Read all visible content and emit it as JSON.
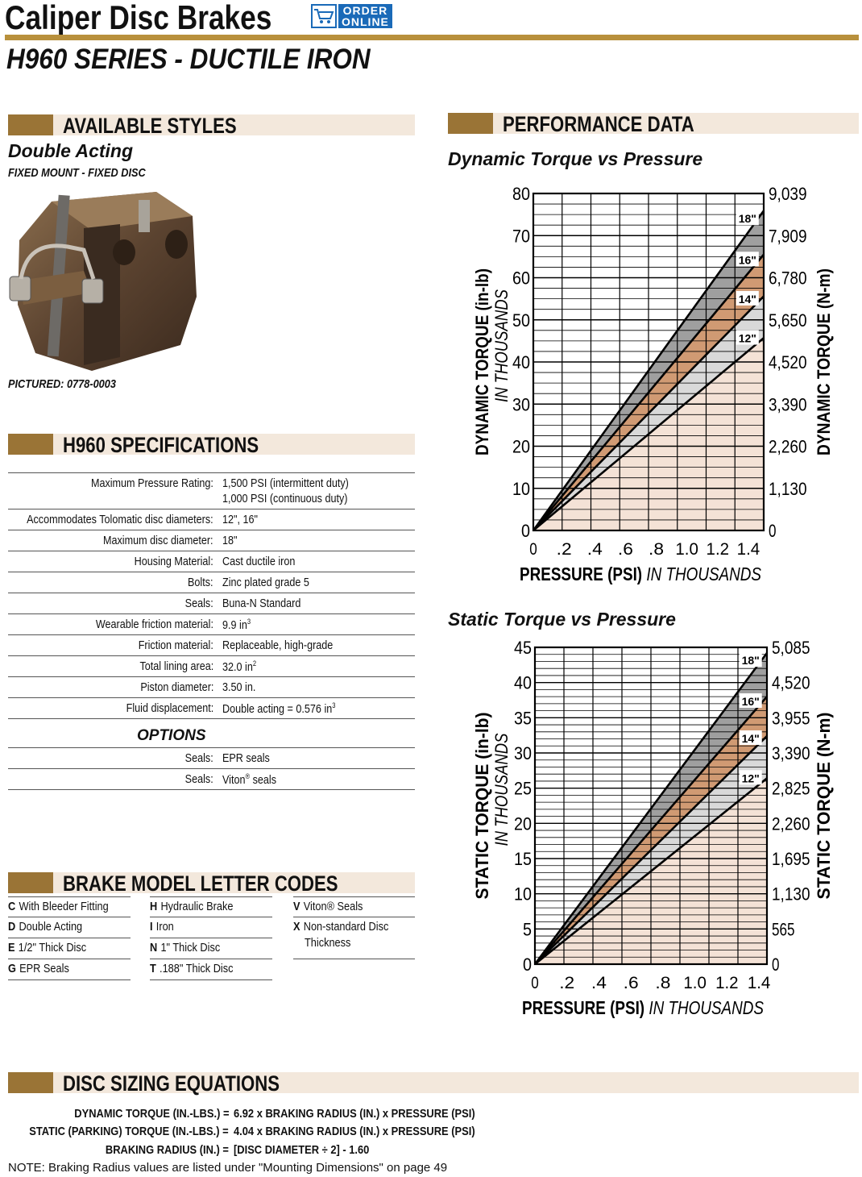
{
  "header": {
    "title": "Caliper Disc Brakes",
    "order_badge": [
      "ORDER",
      "ONLINE"
    ],
    "subtitle": "H960 SERIES - DUCTILE IRON"
  },
  "available_styles": {
    "heading": "AVAILABLE STYLES",
    "style_name": "Double Acting",
    "mount": "FIXED MOUNT - FIXED DISC",
    "pictured": "PICTURED:  0778-0003"
  },
  "specifications": {
    "heading": "H960 SPECIFICATIONS",
    "rows": [
      {
        "label": "Maximum Pressure Rating:",
        "value": "1,500 PSI (intermittent duty)",
        "value2": "1,000 PSI (continuous duty)"
      },
      {
        "label": "Accommodates Tolomatic disc diameters:",
        "value": "12\", 16\""
      },
      {
        "label": "Maximum disc diameter:",
        "value": "18\""
      },
      {
        "label": "Housing Material:",
        "value": "Cast ductile iron"
      },
      {
        "label": "Bolts:",
        "value": "Zinc plated grade 5"
      },
      {
        "label": "Seals:",
        "value": "Buna-N Standard"
      },
      {
        "label": "Wearable friction material:",
        "value": "9.9 in",
        "sup": "3"
      },
      {
        "label": "Friction material:",
        "value": "Replaceable, high-grade"
      },
      {
        "label": "Total lining area:",
        "value": "32.0 in",
        "sup": "2"
      },
      {
        "label": "Piston diameter:",
        "value": "3.50 in."
      },
      {
        "label": "Fluid displacement:",
        "value": "Double acting = 0.576 in",
        "sup": "3"
      }
    ],
    "options_heading": "OPTIONS",
    "options": [
      {
        "label": "Seals:",
        "value": "EPR seals"
      },
      {
        "label": "Seals:",
        "value": "Viton",
        "reg": "®",
        "value_tail": " seals"
      }
    ]
  },
  "letter_codes": {
    "heading": "BRAKE MODEL LETTER CODES",
    "columns": [
      [
        {
          "code": "C",
          "text": "With Bleeder Fitting"
        },
        {
          "code": "D",
          "text": "Double Acting"
        },
        {
          "code": "E",
          "text": "1/2\" Thick Disc"
        },
        {
          "code": "G",
          "text": "EPR Seals"
        }
      ],
      [
        {
          "code": "H",
          "text": "Hydraulic Brake"
        },
        {
          "code": "I",
          "text": "Iron"
        },
        {
          "code": "N",
          "text": "1\" Thick Disc"
        },
        {
          "code": "T",
          "text": ".188\" Thick Disc"
        }
      ],
      [
        {
          "code": "V",
          "text": "Viton® Seals"
        },
        {
          "code": "X",
          "text": "Non-standard Disc",
          "text2": "Thickness"
        }
      ]
    ]
  },
  "performance": {
    "heading": "PERFORMANCE DATA"
  },
  "chart_data": [
    {
      "type": "area",
      "title": "Dynamic Torque vs Pressure",
      "xlabel": "PRESSURE (PSI)",
      "xlabel_suffix": "IN THOUSANDS",
      "ylabel": "DYNAMIC TORQUE (in-lb)",
      "ylabel_sub": "IN THOUSANDS",
      "y2label": "DYNAMIC TORQUE (N-m)",
      "x_ticks": [
        "0",
        ".2",
        ".4",
        ".6",
        ".8",
        "1.0",
        "1.2",
        "1.4"
      ],
      "y_ticks": [
        "0",
        "10",
        "20",
        "30",
        "40",
        "50",
        "60",
        "70",
        "80"
      ],
      "y2_ticks": [
        "0",
        "1,130",
        "2,260",
        "3,390",
        "4,520",
        "5,650",
        "6,780",
        "7,909",
        "9,039"
      ],
      "xlim": [
        0,
        1.5
      ],
      "ylim": [
        0,
        80
      ],
      "grid": true,
      "series": [
        {
          "name": "12\"",
          "x": [
            0,
            1.5
          ],
          "y": [
            0,
            45.7
          ],
          "color": "#f4e2d6"
        },
        {
          "name": "14\"",
          "x": [
            0,
            1.5
          ],
          "y": [
            0,
            55.6
          ],
          "color": "#d9d9d9"
        },
        {
          "name": "16\"",
          "x": [
            0,
            1.5
          ],
          "y": [
            0,
            65.5
          ],
          "color": "#d09a73"
        },
        {
          "name": "18\"",
          "x": [
            0,
            1.5
          ],
          "y": [
            0,
            75.9
          ],
          "color": "#9f9f9f"
        }
      ]
    },
    {
      "type": "area",
      "title": "Static Torque vs Pressure",
      "xlabel": "PRESSURE (PSI)",
      "xlabel_suffix": "IN THOUSANDS",
      "ylabel": "STATIC TORQUE (in-lb)",
      "ylabel_sub": "IN THOUSANDS",
      "y2label": "STATIC TORQUE (N-m)",
      "x_ticks": [
        "0",
        ".2",
        ".4",
        ".6",
        ".8",
        "1.0",
        "1.2",
        "1.4"
      ],
      "y_ticks": [
        "0",
        "5",
        "10",
        "15",
        "20",
        "25",
        "30",
        "35",
        "40",
        "45"
      ],
      "y2_ticks": [
        "0",
        "565",
        "1,130",
        "1,695",
        "2,260",
        "2,825",
        "3,390",
        "3,955",
        "4,520",
        "5,085"
      ],
      "xlim": [
        0,
        1.45
      ],
      "ylim": [
        0,
        45
      ],
      "grid": true,
      "series": [
        {
          "name": "12\"",
          "x": [
            0,
            1.45
          ],
          "y": [
            0,
            26.4
          ],
          "color": "#f4e2d6"
        },
        {
          "name": "14\"",
          "x": [
            0,
            1.45
          ],
          "y": [
            0,
            32.4
          ],
          "color": "#d9d9d9"
        },
        {
          "name": "16\"",
          "x": [
            0,
            1.45
          ],
          "y": [
            0,
            38.0
          ],
          "color": "#d09a73"
        },
        {
          "name": "18\"",
          "x": [
            0,
            1.45
          ],
          "y": [
            0,
            44.2
          ],
          "color": "#9f9f9f"
        }
      ]
    }
  ],
  "equations": {
    "heading": "DISC SIZING EQUATIONS",
    "lines": [
      {
        "left": "DYNAMIC TORQUE (IN.-LBS.) =",
        "right": "6.92 x BRAKING RADIUS (IN.) x PRESSURE (PSI)"
      },
      {
        "left": "STATIC (PARKING) TORQUE (IN.-LBS.) =",
        "right": "4.04 x BRAKING RADIUS (IN.) x PRESSURE (PSI)"
      },
      {
        "left": "BRAKING RADIUS (IN.) =",
        "right": "[DISC DIAMETER ÷ 2] - 1.60"
      }
    ],
    "note": "NOTE: Braking Radius values are listed under \"Mounting Dimensions\" on page 49"
  },
  "colors": {
    "accent": "#9a7436",
    "rule": "#b8903c",
    "section_bg": "#f3e8dc",
    "order_blue": "#1a6ab8"
  }
}
